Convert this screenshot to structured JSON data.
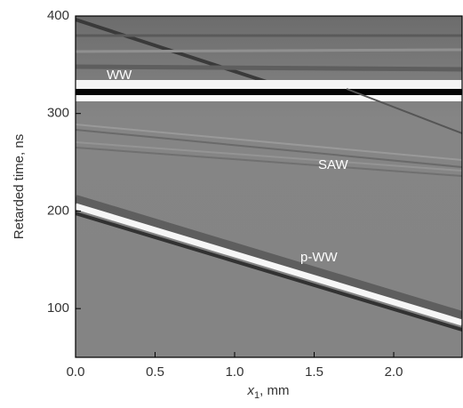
{
  "chart_data": {
    "type": "image",
    "x_label": {
      "symbol": "x",
      "subscript": "1",
      "text": ", mm"
    },
    "y_label": "Retarded time, ns",
    "xlim": [
      0,
      2.43
    ],
    "ylim": [
      50,
      400
    ],
    "xticks": [
      {
        "value": 0,
        "label": "0.0"
      },
      0.5,
      {
        "value": 1,
        "label": "1.0"
      },
      1.5,
      {
        "value": 2,
        "label": "2.0"
      }
    ],
    "yticks": [
      100,
      200,
      300,
      400
    ],
    "annotations": [
      "WW",
      "SAW",
      "p-WW"
    ]
  }
}
